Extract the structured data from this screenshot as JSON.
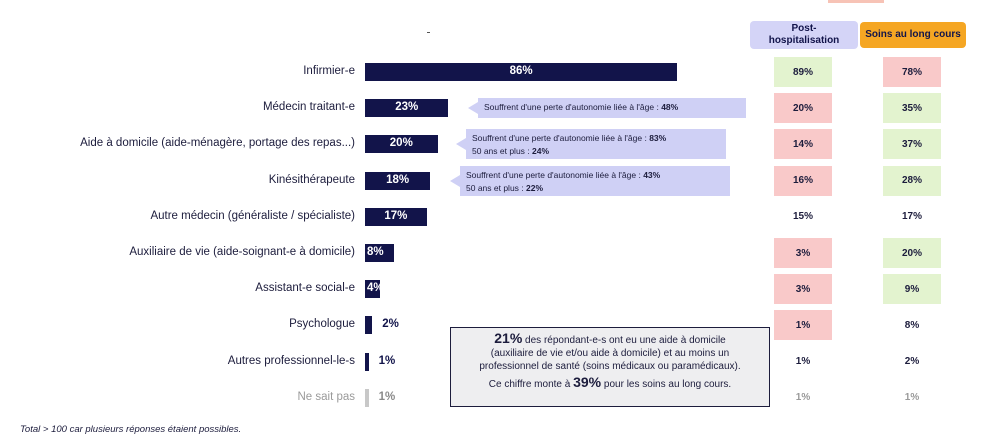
{
  "chart_data": {
    "type": "bar",
    "orientation": "horizontal",
    "categories": [
      "Infirmier-e",
      "Médecin traitant-e",
      "Aide à domicile (aide-ménagère, portage des repas...)",
      "Kinésithérapeute",
      "Autre médecin (généraliste / spécialiste)",
      "Auxiliaire de vie (aide-soignant-e à domicile)",
      "Assistant-e social-e",
      "Psychologue",
      "Autres professionnel-le-s",
      "Ne sait pas"
    ],
    "values": [
      86,
      23,
      20,
      18,
      17,
      8,
      4,
      2,
      1,
      1
    ],
    "value_labels": [
      "86%",
      "23%",
      "20%",
      "18%",
      "17%",
      "8%",
      "4%",
      "2%",
      "1%",
      "1%"
    ],
    "xlim": [
      0,
      100
    ],
    "grid": false,
    "columns": [
      {
        "name": "Post-\nhospitalisation",
        "header_color": "#d4d4f7",
        "values": [
          89,
          20,
          14,
          16,
          15,
          3,
          3,
          1,
          1,
          1
        ],
        "labels": [
          "89%",
          "20%",
          "14%",
          "16%",
          "15%",
          "3%",
          "3%",
          "1%",
          "1%",
          "1%"
        ],
        "highlight": [
          "higher",
          "lower",
          "lower",
          "lower",
          "none",
          "lower",
          "lower",
          "lower",
          "none",
          "none"
        ]
      },
      {
        "name": "Soins au long cours",
        "header_color": "#f5a623",
        "values": [
          78,
          35,
          37,
          28,
          17,
          20,
          9,
          8,
          2,
          1
        ],
        "labels": [
          "78%",
          "35%",
          "37%",
          "28%",
          "17%",
          "20%",
          "9%",
          "8%",
          "2%",
          "1%"
        ],
        "highlight": [
          "lower",
          "higher",
          "higher",
          "higher",
          "none",
          "higher",
          "higher",
          "none",
          "none",
          "none"
        ]
      }
    ],
    "highlight_colors": {
      "higher": "#e3f3cf",
      "lower": "#f9c9c9",
      "none": "#ffffff"
    },
    "annotations": [
      {
        "category_index": 1,
        "lines": [
          {
            "text": "Souffrent d'une perte d'autonomie liée à l'âge : ",
            "bold": "48%"
          }
        ]
      },
      {
        "category_index": 2,
        "lines": [
          {
            "text": "Souffrent d'une perte d'autonomie liée à l'âge : ",
            "bold": "83%"
          },
          {
            "text": "50 ans et plus : ",
            "bold": "24%"
          }
        ]
      },
      {
        "category_index": 3,
        "lines": [
          {
            "text": "Souffrent d'une perte d'autonomie liée à l'âge : ",
            "bold": "43%"
          },
          {
            "text": "50 ans et plus : ",
            "bold": "22%"
          }
        ]
      }
    ],
    "summary": {
      "line1_big": "21%",
      "line1_text": " des répondant-e-s ont eu une aide à domicile",
      "line2": "(auxiliaire de vie et/ou aide à domicile) et au moins un",
      "line3": "professionnel de santé (soins médicaux ou paramédicaux).",
      "line4_pre": "Ce chiffre monte à ",
      "line4_big": "39%",
      "line4_post": " pour les soins au long cours."
    },
    "footnote": "Total > 100 car plusieurs réponses étaient possibles.",
    "colors": {
      "bar": "#12144a",
      "muted_bar": "#c8c8c8",
      "callout": "#cfd0f5"
    }
  }
}
